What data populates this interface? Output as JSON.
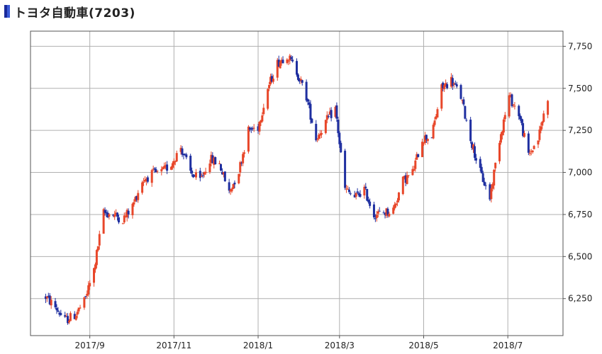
{
  "title": "トヨタ自動車(7203)",
  "chart_data": {
    "type": "candlestick",
    "title": "トヨタ自動車(7203)",
    "xlabel": "",
    "ylabel": "",
    "ylim": [
      6030,
      7840
    ],
    "xlim": [
      "2017-07-20",
      "2018-08-10"
    ],
    "y_ticks": [
      6250,
      6500,
      6750,
      7000,
      7250,
      7500,
      7750
    ],
    "y_tick_labels": [
      "6,250",
      "6,500",
      "6,750",
      "7,000",
      "7,250",
      "7,500",
      "7,750"
    ],
    "x_ticks": [
      "2017-09-01",
      "2017-11-01",
      "2018-01-01",
      "2018-03-01",
      "2018-05-01",
      "2018-07-01"
    ],
    "x_tick_labels": [
      "2017/9",
      "2017/11",
      "2018/1",
      "2018/3",
      "2018/5",
      "2018/7"
    ],
    "grid": true,
    "colors": {
      "up": "#e8472a",
      "down": "#1f2fa0",
      "grid": "#b0b0b0",
      "frame": "#555555"
    },
    "close_series": {
      "name": "",
      "dates": [
        "2017-07-31",
        "2017-08-07",
        "2017-08-14",
        "2017-08-21",
        "2017-08-28",
        "2017-09-04",
        "2017-09-11",
        "2017-09-18",
        "2017-09-25",
        "2017-10-02",
        "2017-10-09",
        "2017-10-16",
        "2017-10-23",
        "2017-10-30",
        "2017-11-06",
        "2017-11-13",
        "2017-11-20",
        "2017-11-27",
        "2017-12-04",
        "2017-12-11",
        "2017-12-18",
        "2017-12-25",
        "2018-01-01",
        "2018-01-08",
        "2018-01-15",
        "2018-01-22",
        "2018-01-29",
        "2018-02-05",
        "2018-02-12",
        "2018-02-19",
        "2018-02-26",
        "2018-03-05",
        "2018-03-12",
        "2018-03-19",
        "2018-03-26",
        "2018-04-02",
        "2018-04-09",
        "2018-04-16",
        "2018-04-23",
        "2018-04-30",
        "2018-05-07",
        "2018-05-14",
        "2018-05-21",
        "2018-05-28",
        "2018-06-04",
        "2018-06-11",
        "2018-06-18",
        "2018-06-25",
        "2018-07-02",
        "2018-07-09",
        "2018-07-16",
        "2018-07-23",
        "2018-07-30"
      ],
      "values": [
        6260,
        6200,
        6120,
        6150,
        6230,
        6420,
        6760,
        6750,
        6720,
        6800,
        6950,
        6990,
        7000,
        7050,
        7150,
        7000,
        6950,
        7080,
        7050,
        6880,
        7010,
        7250,
        7270,
        7500,
        7650,
        7700,
        7600,
        7450,
        7200,
        7300,
        7380,
        6900,
        6850,
        6900,
        6750,
        6760,
        6780,
        6950,
        7000,
        7200,
        7220,
        7500,
        7550,
        7450,
        7200,
        7000,
        6850,
        7200,
        7450,
        7350,
        7100,
        7200,
        7450
      ]
    }
  }
}
